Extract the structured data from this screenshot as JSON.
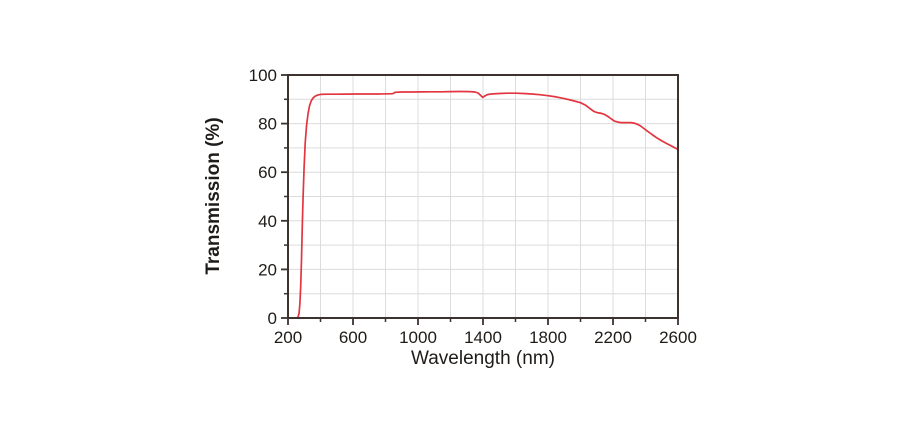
{
  "figure": {
    "background": "#ffffff"
  },
  "chart_data": {
    "type": "line",
    "title": "",
    "xlabel": "Wavelength (nm)",
    "ylabel": "Transmission (%)",
    "xlim": [
      200,
      2600
    ],
    "ylim": [
      0,
      100
    ],
    "x_major_ticks": [
      200,
      600,
      1000,
      1400,
      1800,
      2200,
      2600
    ],
    "x_minor_tick_step": 200,
    "y_major_ticks": [
      0,
      20,
      40,
      60,
      80,
      100
    ],
    "y_minor_tick_step": 10,
    "grid": "on",
    "legend": "none",
    "colors": {
      "line": "#e23540",
      "grid": "#dcdcdc",
      "frame": "#3c322e",
      "text": "#1f1b18"
    },
    "series": [
      {
        "name": "Transmission",
        "points": [
          [
            200,
            0
          ],
          [
            255,
            0
          ],
          [
            262,
            0.5
          ],
          [
            268,
            2
          ],
          [
            273,
            6
          ],
          [
            278,
            13
          ],
          [
            283,
            24
          ],
          [
            288,
            38
          ],
          [
            293,
            50
          ],
          [
            299,
            62
          ],
          [
            306,
            72
          ],
          [
            314,
            79
          ],
          [
            323,
            84
          ],
          [
            333,
            87.5
          ],
          [
            344,
            89.5
          ],
          [
            356,
            90.7
          ],
          [
            370,
            91.4
          ],
          [
            385,
            91.8
          ],
          [
            400,
            92
          ],
          [
            440,
            92.1
          ],
          [
            500,
            92.1
          ],
          [
            560,
            92.15
          ],
          [
            620,
            92.2
          ],
          [
            700,
            92.2
          ],
          [
            760,
            92.2
          ],
          [
            820,
            92.25
          ],
          [
            845,
            92.3
          ],
          [
            852,
            92.6
          ],
          [
            860,
            92.9
          ],
          [
            900,
            93
          ],
          [
            960,
            93
          ],
          [
            1020,
            93.05
          ],
          [
            1080,
            93.1
          ],
          [
            1140,
            93.1
          ],
          [
            1200,
            93.15
          ],
          [
            1260,
            93.2
          ],
          [
            1320,
            93.15
          ],
          [
            1350,
            93
          ],
          [
            1370,
            92.6
          ],
          [
            1385,
            91.6
          ],
          [
            1398,
            90.8
          ],
          [
            1410,
            91.3
          ],
          [
            1425,
            91.9
          ],
          [
            1450,
            92.2
          ],
          [
            1500,
            92.4
          ],
          [
            1550,
            92.5
          ],
          [
            1600,
            92.5
          ],
          [
            1650,
            92.4
          ],
          [
            1700,
            92.2
          ],
          [
            1750,
            91.9
          ],
          [
            1800,
            91.5
          ],
          [
            1850,
            91
          ],
          [
            1900,
            90.3
          ],
          [
            1950,
            89.5
          ],
          [
            2000,
            88.6
          ],
          [
            2030,
            87.6
          ],
          [
            2060,
            86.1
          ],
          [
            2080,
            85.1
          ],
          [
            2090,
            84.8
          ],
          [
            2110,
            84.4
          ],
          [
            2130,
            84.2
          ],
          [
            2150,
            83.7
          ],
          [
            2170,
            82.9
          ],
          [
            2190,
            81.9
          ],
          [
            2210,
            81
          ],
          [
            2230,
            80.6
          ],
          [
            2250,
            80.4
          ],
          [
            2270,
            80.4
          ],
          [
            2290,
            80.4
          ],
          [
            2310,
            80.4
          ],
          [
            2330,
            80.2
          ],
          [
            2350,
            79.7
          ],
          [
            2370,
            79
          ],
          [
            2390,
            78
          ],
          [
            2410,
            77
          ],
          [
            2440,
            75.5
          ],
          [
            2470,
            74.1
          ],
          [
            2500,
            72.9
          ],
          [
            2530,
            71.8
          ],
          [
            2560,
            70.8
          ],
          [
            2580,
            70.1
          ],
          [
            2600,
            69.4
          ]
        ]
      }
    ]
  }
}
